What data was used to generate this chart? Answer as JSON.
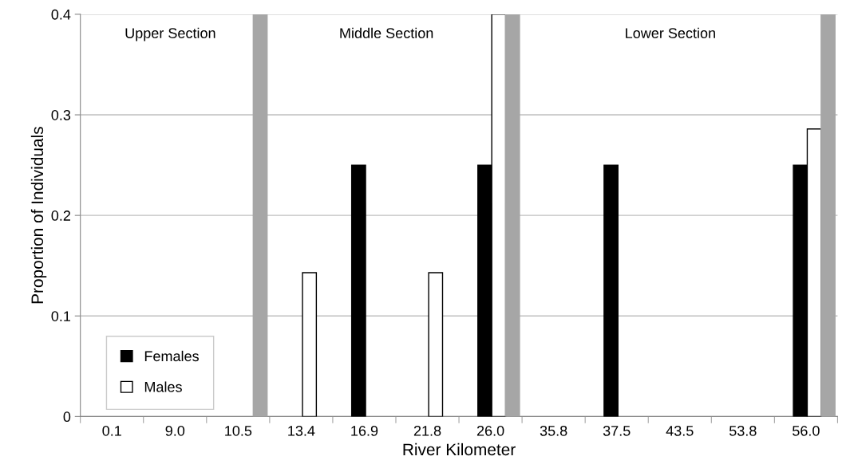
{
  "chart_data": {
    "type": "bar",
    "xlabel": "River Kilometer",
    "ylabel": "Proportion of Individuals",
    "categories": [
      "0.1",
      "9.0",
      "10.5",
      "13.4",
      "16.9",
      "21.8",
      "26.0",
      "35.8",
      "37.5",
      "43.5",
      "53.8",
      "56.0"
    ],
    "series": [
      {
        "name": "Females",
        "color": "#000000",
        "values": [
          null,
          null,
          null,
          null,
          0.25,
          null,
          0.25,
          null,
          0.25,
          null,
          null,
          0.25
        ]
      },
      {
        "name": "Males",
        "color": "#ffffff",
        "values": [
          null,
          null,
          null,
          0.143,
          null,
          0.143,
          0.4,
          null,
          null,
          null,
          null,
          0.286
        ]
      },
      {
        "color": "#a6a6a6",
        "values": [
          null,
          null,
          0.4,
          null,
          null,
          null,
          0.4,
          null,
          null,
          null,
          null,
          0.4
        ]
      }
    ],
    "ylim": [
      0,
      0.4
    ],
    "yticks": [
      {
        "value": 0,
        "label": "0"
      },
      0.1,
      0.2,
      0.3,
      0.4
    ],
    "grid": "y",
    "legend": "bottom left",
    "annotations": [
      "Upper Section",
      "Middle Section",
      "Lower Section"
    ]
  }
}
